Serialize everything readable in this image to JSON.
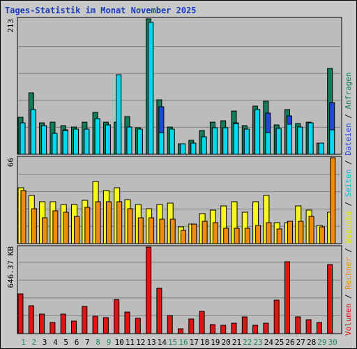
{
  "title": "Tages-Statistik im Monat November 2025",
  "colors": {
    "anfragen": "#137a5a",
    "dateien": "#2446d6",
    "seiten": "#00d8f0",
    "besuche": "#f8f820",
    "rechner": "#f08a10",
    "volumen": "#e01414",
    "weekday_label": "#000000",
    "weekend_label": "#1f8f5a",
    "plot_bg": "#bcbcbc"
  },
  "chart_data": [
    {
      "type": "bar",
      "panel": "top",
      "max_label": "213",
      "ylim": [
        0,
        213
      ],
      "categories": [
        "1",
        "2",
        "3",
        "4",
        "5",
        "6",
        "7",
        "8",
        "9",
        "10",
        "11",
        "12",
        "13",
        "14",
        "15",
        "16",
        "17",
        "18",
        "19",
        "20",
        "21",
        "22",
        "23",
        "24",
        "25",
        "26",
        "27",
        "28",
        "29",
        "30"
      ],
      "series": [
        {
          "name": "Anfragen",
          "values": [
            58,
            97,
            49,
            50,
            45,
            43,
            50,
            66,
            51,
            50,
            59,
            42,
            213,
            86,
            43,
            16,
            22,
            37,
            50,
            53,
            68,
            45,
            76,
            83,
            46,
            70,
            48,
            50,
            18,
            135
          ]
        },
        {
          "name": "Dateien",
          "values": [
            48,
            70,
            44,
            32,
            38,
            39,
            40,
            55,
            46,
            48,
            42,
            38,
            208,
            75,
            34,
            15,
            18,
            26,
            42,
            42,
            49,
            40,
            70,
            65,
            40,
            60,
            42,
            48,
            17,
            81
          ]
        },
        {
          "name": "Seiten",
          "values": [
            49,
            70,
            45,
            33,
            37,
            40,
            40,
            56,
            46,
            125,
            43,
            39,
            208,
            34,
            40,
            16,
            18,
            27,
            42,
            42,
            48,
            40,
            70,
            34,
            41,
            47,
            43,
            49,
            18,
            38
          ]
        }
      ]
    },
    {
      "type": "bar",
      "panel": "middle",
      "max_label": "66",
      "ylim": [
        0,
        66
      ],
      "categories": [
        "1",
        "2",
        "3",
        "4",
        "5",
        "6",
        "7",
        "8",
        "9",
        "10",
        "11",
        "12",
        "13",
        "14",
        "15",
        "16",
        "17",
        "18",
        "19",
        "20",
        "21",
        "22",
        "23",
        "24",
        "25",
        "26",
        "27",
        "28",
        "29",
        "30"
      ],
      "series": [
        {
          "name": "Besuche",
          "values": [
            43,
            37,
            32,
            32,
            30,
            30,
            33,
            48,
            41,
            43,
            34,
            30,
            27,
            30,
            31,
            13,
            15,
            23,
            26,
            29,
            32,
            24,
            32,
            37,
            16,
            16,
            29,
            26,
            14,
            24
          ]
        },
        {
          "name": "Rechner",
          "values": [
            41,
            27,
            20,
            25,
            24,
            21,
            28,
            32,
            32,
            32,
            27,
            20,
            20,
            19,
            19,
            10,
            15,
            17,
            16,
            12,
            12,
            12,
            14,
            16,
            11,
            17,
            17,
            21,
            13,
            66
          ]
        }
      ]
    },
    {
      "type": "bar",
      "panel": "bottom",
      "max_label": "646.37 KB",
      "ylim": [
        0,
        646.37
      ],
      "categories": [
        "1",
        "2",
        "3",
        "4",
        "5",
        "6",
        "7",
        "8",
        "9",
        "10",
        "11",
        "12",
        "13",
        "14",
        "15",
        "16",
        "17",
        "18",
        "19",
        "20",
        "21",
        "22",
        "23",
        "24",
        "25",
        "26",
        "27",
        "28",
        "29",
        "30"
      ],
      "series": [
        {
          "name": "Volumen",
          "values": [
            297,
            211,
            144,
            84,
            145,
            93,
            201,
            131,
            120,
            253,
            161,
            115,
            646,
            340,
            135,
            39,
            111,
            167,
            69,
            60,
            77,
            125,
            65,
            79,
            248,
            537,
            125,
            105,
            86,
            517
          ]
        }
      ]
    }
  ],
  "x_axis": {
    "labels": [
      "1",
      "2",
      "3",
      "4",
      "5",
      "6",
      "7",
      "8",
      "9",
      "10",
      "11",
      "12",
      "13",
      "14",
      "15",
      "16",
      "17",
      "18",
      "19",
      "20",
      "21",
      "22",
      "23",
      "24",
      "25",
      "26",
      "27",
      "28",
      "29",
      "30"
    ],
    "weekend": [
      true,
      true,
      false,
      false,
      false,
      false,
      false,
      true,
      true,
      false,
      false,
      false,
      false,
      false,
      true,
      true,
      false,
      false,
      false,
      false,
      false,
      true,
      true,
      false,
      false,
      false,
      false,
      false,
      true,
      true
    ]
  },
  "legend": {
    "volumen": "Volumen",
    "rechner": "Rechner",
    "besuche": "Besuche",
    "seiten": "Seiten",
    "dateien": "Dateien",
    "anfragen": "Anfragen",
    "separator": " / "
  }
}
